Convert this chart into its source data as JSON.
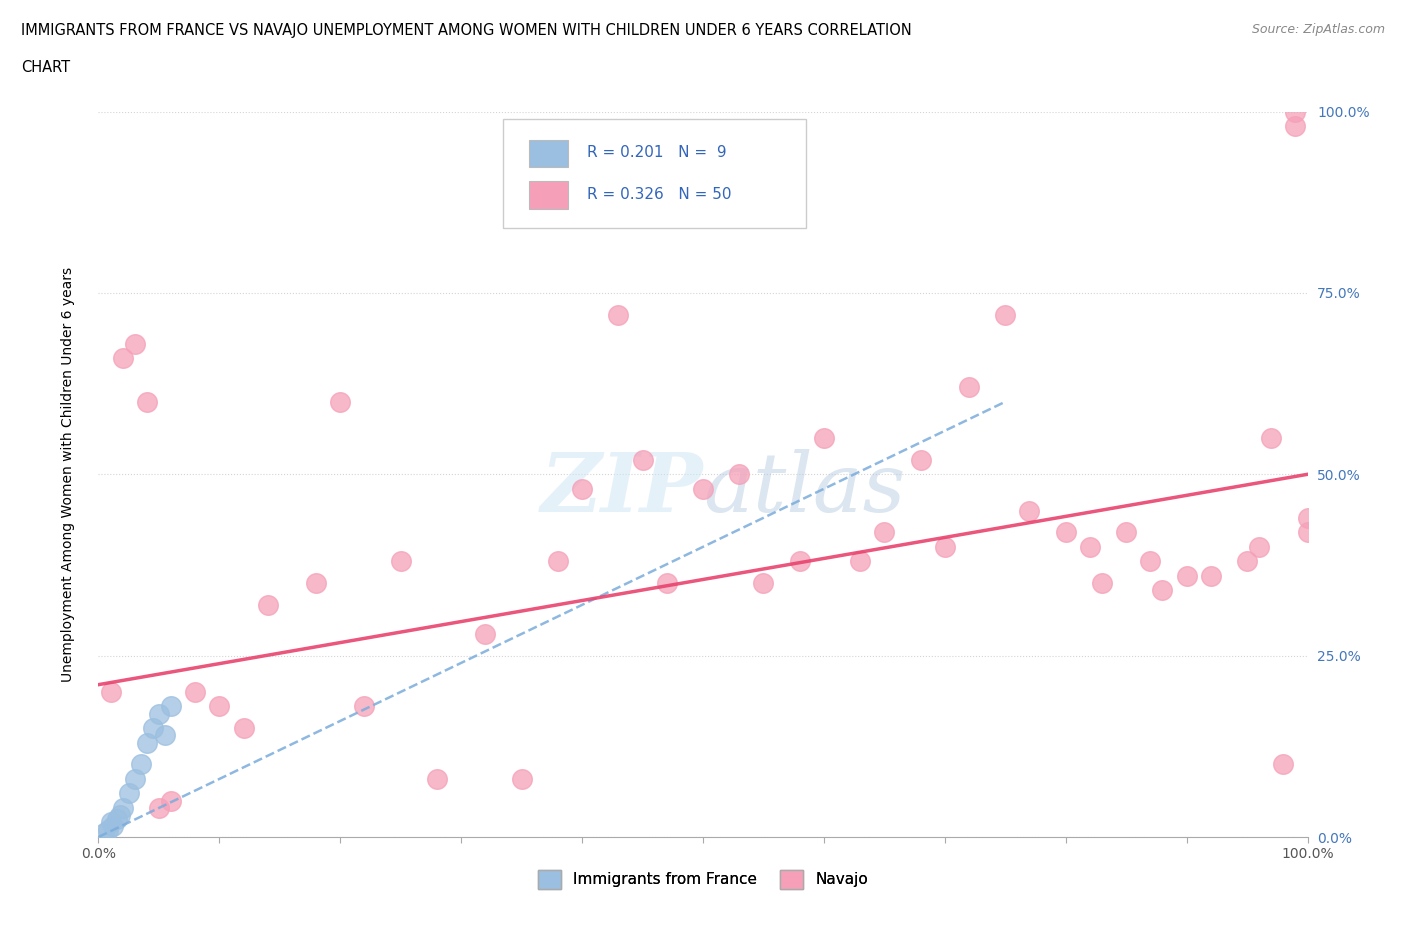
{
  "title_line1": "IMMIGRANTS FROM FRANCE VS NAVAJO UNEMPLOYMENT AMONG WOMEN WITH CHILDREN UNDER 6 YEARS CORRELATION",
  "title_line2": "CHART",
  "source": "Source: ZipAtlas.com",
  "ylabel": "Unemployment Among Women with Children Under 6 years",
  "xlim": [
    0,
    1
  ],
  "ylim": [
    0,
    1
  ],
  "ytick_labels": [
    "0.0%",
    "25.0%",
    "50.0%",
    "75.0%",
    "100.0%"
  ],
  "ytick_values": [
    0,
    0.25,
    0.5,
    0.75,
    1.0
  ],
  "background_color": "#ffffff",
  "france_color": "#9bbfe0",
  "navajo_color": "#f5a0b8",
  "france_line_color": "#7aacdb",
  "navajo_line_color": "#e8436e",
  "grid_color": "#d0d0d0",
  "france_scatter_x": [
    0.005,
    0.008,
    0.01,
    0.012,
    0.015,
    0.018,
    0.02,
    0.025,
    0.03,
    0.035,
    0.04,
    0.045,
    0.05,
    0.055,
    0.06
  ],
  "france_scatter_y": [
    0.005,
    0.01,
    0.02,
    0.015,
    0.025,
    0.03,
    0.04,
    0.06,
    0.08,
    0.1,
    0.13,
    0.15,
    0.17,
    0.14,
    0.18
  ],
  "navajo_scatter_x": [
    0.01,
    0.02,
    0.03,
    0.04,
    0.05,
    0.06,
    0.08,
    0.1,
    0.12,
    0.14,
    0.18,
    0.2,
    0.22,
    0.25,
    0.28,
    0.32,
    0.35,
    0.38,
    0.4,
    0.43,
    0.45,
    0.47,
    0.5,
    0.53,
    0.55,
    0.58,
    0.6,
    0.63,
    0.65,
    0.68,
    0.7,
    0.72,
    0.75,
    0.77,
    0.8,
    0.82,
    0.83,
    0.85,
    0.87,
    0.88,
    0.9,
    0.92,
    0.95,
    0.96,
    0.97,
    0.98,
    0.99,
    0.99,
    1.0,
    1.0
  ],
  "navajo_scatter_y": [
    0.2,
    0.66,
    0.68,
    0.6,
    0.04,
    0.05,
    0.2,
    0.18,
    0.15,
    0.32,
    0.35,
    0.6,
    0.18,
    0.38,
    0.08,
    0.28,
    0.08,
    0.38,
    0.48,
    0.72,
    0.52,
    0.35,
    0.48,
    0.5,
    0.35,
    0.38,
    0.55,
    0.38,
    0.42,
    0.52,
    0.4,
    0.62,
    0.72,
    0.45,
    0.42,
    0.4,
    0.35,
    0.42,
    0.38,
    0.34,
    0.36,
    0.36,
    0.38,
    0.4,
    0.55,
    0.1,
    0.98,
    1.0,
    0.42,
    0.44
  ],
  "navajo_line_start_x": 0.0,
  "navajo_line_start_y": 0.21,
  "navajo_line_end_x": 1.0,
  "navajo_line_end_y": 0.5,
  "france_line_start_x": 0.0,
  "france_line_start_y": 0.0,
  "france_line_end_x": 0.75,
  "france_line_end_y": 0.6
}
